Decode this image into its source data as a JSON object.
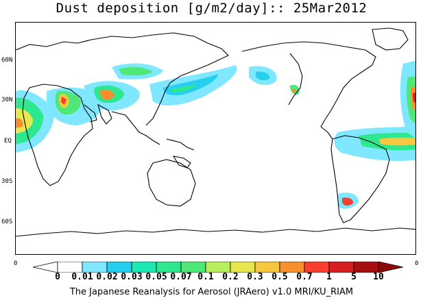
{
  "title": "Dust deposition [g/m2/day]:: 25Mar2012",
  "lat_labels": [
    "60N",
    "30N",
    "EQ",
    "30S",
    "60S"
  ],
  "corner_left": "0",
  "corner_right": "0",
  "colorbar": {
    "ticks": [
      "0",
      "0.01",
      "0.02",
      "0.03",
      "0.05",
      "0.07",
      "0.1",
      "0.2",
      "0.3",
      "0.5",
      "0.7",
      "1",
      "5",
      "10"
    ],
    "colors": [
      "#ffffff",
      "#ffffff",
      "#7fe7ff",
      "#27cfee",
      "#1fe7b3",
      "#2fe78f",
      "#4fe777",
      "#b8ef5f",
      "#e7e74f",
      "#f7c73f",
      "#f78f2f",
      "#f73f2f",
      "#d71f1f",
      "#a70f0f",
      "#8f0707"
    ]
  },
  "footer": "The Japanese Reanalysis for Aerosol (JRAero) v1.0 MRI/KU_RIAM"
}
